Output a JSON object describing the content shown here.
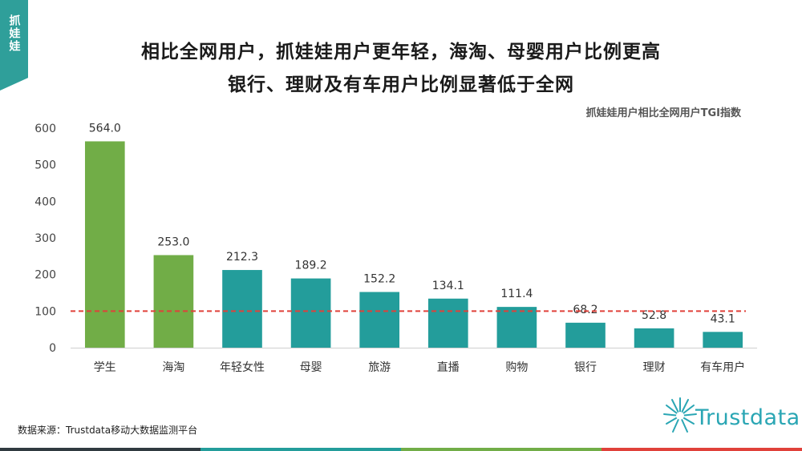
{
  "side_tab": {
    "label": "抓娃娃"
  },
  "title": {
    "line1": "相比全网用户，抓娃娃用户更年轻，海淘、母婴用户比例更高",
    "line2": "银行、理财及有车用户比例显著低于全网"
  },
  "source": "数据来源：Trustdata移动大数据监测平台",
  "logo": {
    "text": "Trustdata"
  },
  "colors": {
    "green": "#71ad47",
    "teal": "#239d9b",
    "reference": "#e0413a",
    "tab": "#2f9f9a",
    "stripes": [
      "#303a40",
      "#239d9b",
      "#71ad47",
      "#e0413a"
    ]
  },
  "chart_data": {
    "type": "bar",
    "title": "抓娃娃用户相比全网用户TGI指数",
    "categories": [
      "学生",
      "海淘",
      "年轻女性",
      "母婴",
      "旅游",
      "直播",
      "购物",
      "银行",
      "理财",
      "有车用户"
    ],
    "values": [
      564.0,
      253.0,
      212.3,
      189.2,
      152.2,
      134.1,
      111.4,
      68.2,
      52.8,
      43.1
    ],
    "value_labels": [
      "564.0",
      "253.0",
      "212.3",
      "189.2",
      "152.2",
      "134.1",
      "111.4",
      "68.2",
      "52.8",
      "43.1"
    ],
    "bar_colors": [
      "green",
      "green",
      "teal",
      "teal",
      "teal",
      "teal",
      "teal",
      "teal",
      "teal",
      "teal"
    ],
    "yticks": [
      0,
      100,
      200,
      300,
      400,
      500,
      600
    ],
    "ylim": [
      0,
      600
    ],
    "reference_line": 100,
    "xlabel": "",
    "ylabel": "",
    "grid": false,
    "legend": "none"
  }
}
